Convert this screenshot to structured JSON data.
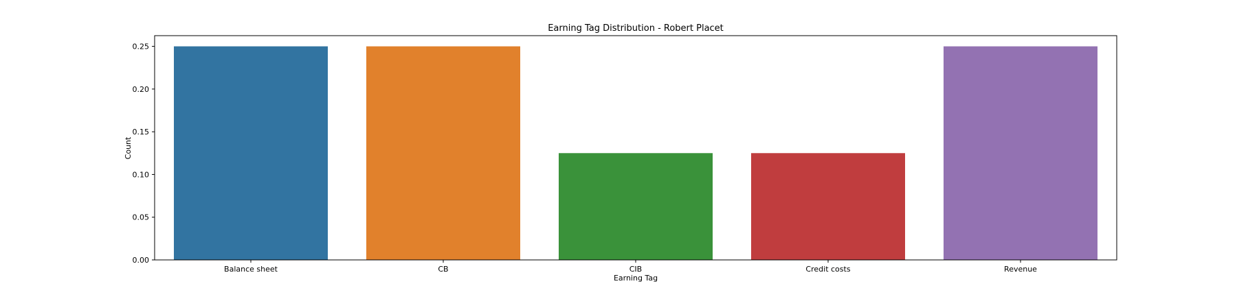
{
  "chart_data": {
    "type": "bar",
    "title": "Earning Tag Distribution - Robert Placet",
    "xlabel": "Earning Tag",
    "ylabel": "Count",
    "categories": [
      "Balance sheet",
      "CB",
      "CIB",
      "Credit costs",
      "Revenue"
    ],
    "values": [
      0.25,
      0.25,
      0.125,
      0.125,
      0.25
    ],
    "colors": [
      "#3274a1",
      "#e1812c",
      "#3a923a",
      "#c03d3e",
      "#9372b2"
    ],
    "ylim": [
      0,
      0.2625
    ],
    "yticks": [
      "0.00",
      "0.05",
      "0.10",
      "0.15",
      "0.20",
      "0.25"
    ],
    "grid": false,
    "legend": "none"
  }
}
